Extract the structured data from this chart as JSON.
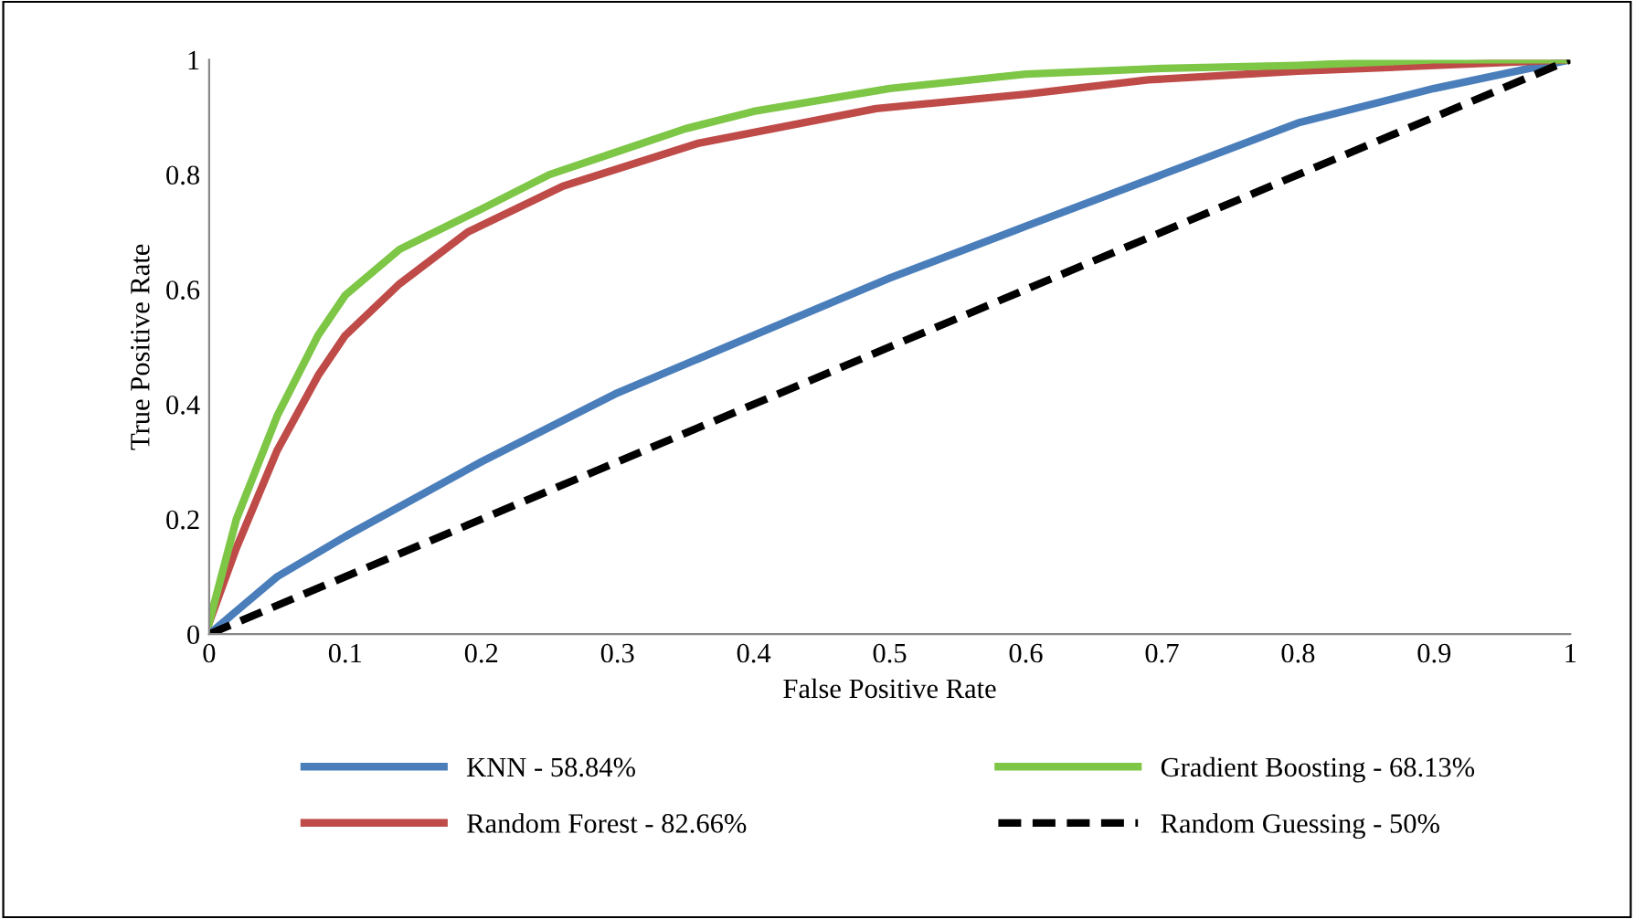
{
  "chart_data": {
    "type": "line",
    "xlabel": "False Positive Rate",
    "ylabel": "True Positive Rate",
    "xlim": [
      0,
      1
    ],
    "ylim": [
      0,
      1
    ],
    "xticks": [
      0,
      0.1,
      0.2,
      0.3,
      0.4,
      0.5,
      0.6,
      0.7,
      0.8,
      0.9,
      1
    ],
    "yticks": [
      0,
      0.2,
      0.4,
      0.6,
      0.8,
      1
    ],
    "grid": false,
    "legend": "bottom",
    "marker": "none",
    "series": [
      {
        "name": "KNN - 58.84%",
        "color": "#4a7ebb",
        "line_style": "solid",
        "x": [
          0,
          0.05,
          0.1,
          0.2,
          0.3,
          0.4,
          0.5,
          0.6,
          0.7,
          0.8,
          0.9,
          1
        ],
        "values": [
          0,
          0.1,
          0.17,
          0.3,
          0.42,
          0.52,
          0.62,
          0.71,
          0.8,
          0.89,
          0.95,
          1
        ]
      },
      {
        "name": "Random Forest - 82.66%",
        "color": "#be4b48",
        "line_style": "solid",
        "x": [
          0,
          0.02,
          0.05,
          0.08,
          0.1,
          0.14,
          0.19,
          0.26,
          0.36,
          0.49,
          0.6,
          0.69,
          0.8,
          0.9,
          1
        ],
        "values": [
          0.02,
          0.15,
          0.32,
          0.45,
          0.52,
          0.61,
          0.7,
          0.78,
          0.855,
          0.915,
          0.94,
          0.965,
          0.98,
          0.99,
          1
        ]
      },
      {
        "name": "Gradient Boosting - 68.13%",
        "color": "#7dc646",
        "line_style": "solid",
        "x": [
          0,
          0.02,
          0.05,
          0.08,
          0.1,
          0.14,
          0.2,
          0.25,
          0.3,
          0.35,
          0.4,
          0.5,
          0.6,
          0.7,
          0.8,
          0.9,
          1
        ],
        "values": [
          0.02,
          0.2,
          0.38,
          0.52,
          0.59,
          0.67,
          0.74,
          0.8,
          0.84,
          0.88,
          0.91,
          0.95,
          0.975,
          0.985,
          0.99,
          1,
          1
        ]
      },
      {
        "name": "Random Guessing - 50%",
        "color": "#000000",
        "line_style": "dashed",
        "x": [
          0,
          1
        ],
        "values": [
          0,
          1
        ]
      }
    ]
  }
}
